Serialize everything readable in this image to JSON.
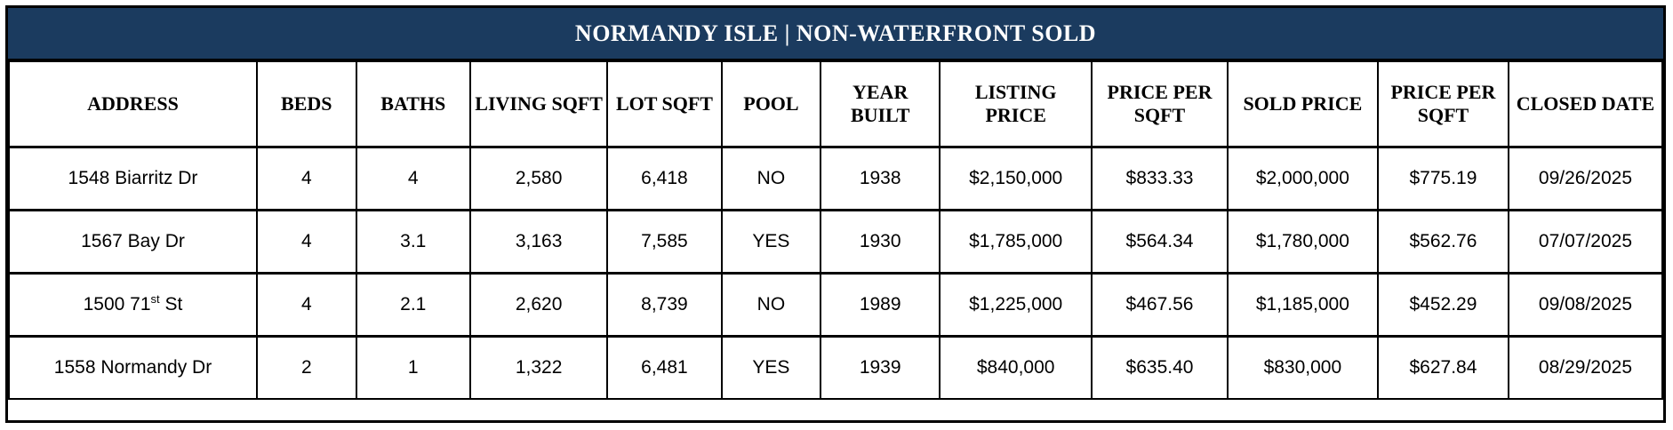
{
  "title": "NORMANDY ISLE | NON-WATERFRONT SOLD",
  "colors": {
    "title_bar_bg": "#1b3b5f",
    "title_text": "#ffffff",
    "border": "#000000",
    "cell_bg": "#ffffff",
    "cell_text": "#000000"
  },
  "table": {
    "columns": [
      "ADDRESS",
      "BEDS",
      "BATHS",
      "LIVING SQFT",
      "LOT SQFT",
      "POOL",
      "YEAR BUILT",
      "LISTING PRICE",
      "PRICE PER SQFT",
      "SOLD PRICE",
      "PRICE PER SQFT",
      "CLOSED DATE"
    ],
    "rows": [
      [
        "1548 Biarritz Dr",
        "4",
        "4",
        "2,580",
        "6,418",
        "NO",
        "1938",
        "$2,150,000",
        "$833.33",
        "$2,000,000",
        "$775.19",
        "09/26/2025"
      ],
      [
        "1567 Bay Dr",
        "4",
        "3.1",
        "3,163",
        "7,585",
        "YES",
        "1930",
        "$1,785,000",
        "$564.34",
        "$1,780,000",
        "$562.76",
        "07/07/2025"
      ],
      [
        "1500 71^st^ St",
        "4",
        "2.1",
        "2,620",
        "8,739",
        "NO",
        "1989",
        "$1,225,000",
        "$467.56",
        "$1,185,000",
        "$452.29",
        "09/08/2025"
      ],
      [
        "1558 Normandy Dr",
        "2",
        "1",
        "1,322",
        "6,481",
        "YES",
        "1939",
        "$840,000",
        "$635.40",
        "$830,000",
        "$627.84",
        "08/29/2025"
      ]
    ]
  }
}
